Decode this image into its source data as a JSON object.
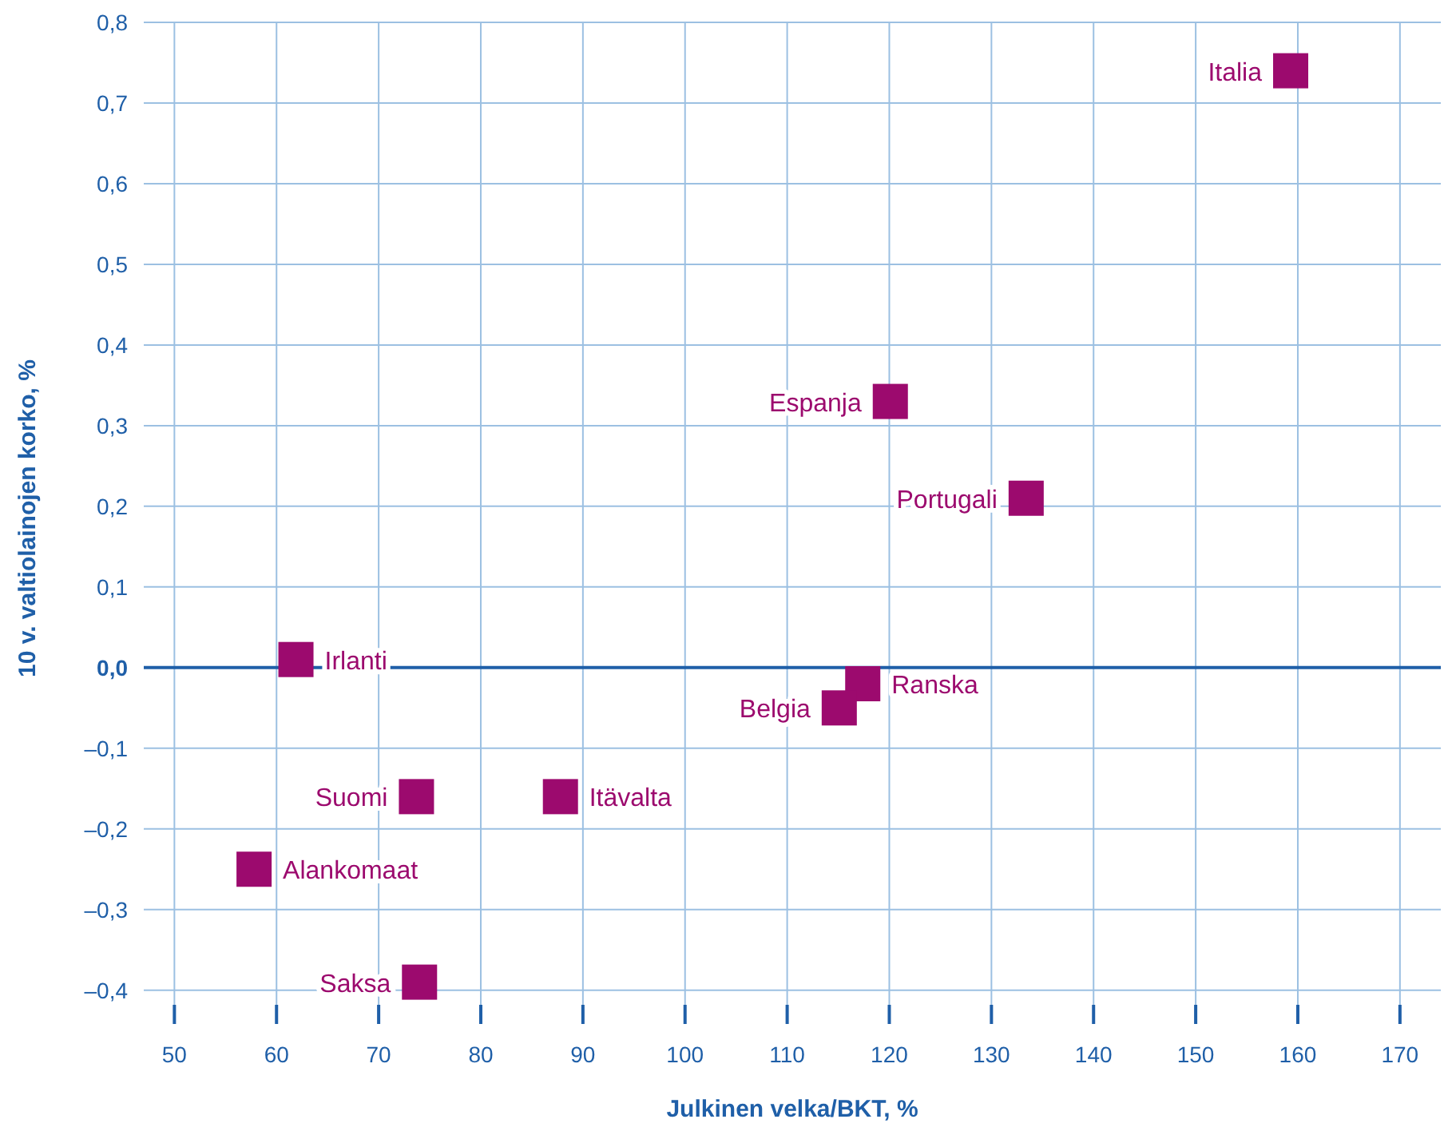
{
  "chart_data": {
    "type": "scatter",
    "xlabel": "Julkinen velka/BKT, %",
    "ylabel": "10 v. valtiolainojen korko, %",
    "x": [
      159.3,
      120.1,
      133.4,
      61.9,
      117.4,
      115.1,
      73.7,
      87.8,
      57.8,
      74
    ],
    "series": [
      {
        "color": "#9c0a6e",
        "values": [
          0.74,
          0.33,
          0.21,
          0.01,
          -0.02,
          -0.05,
          -0.16,
          -0.16,
          -0.25,
          -0.39
        ]
      }
    ],
    "marker": "square",
    "grid": true,
    "xlim": [
      47,
      174
    ],
    "ylim": [
      -0.43,
      0.8
    ],
    "xticks": [
      50,
      60,
      70,
      80,
      90,
      100,
      110,
      120,
      130,
      140,
      150,
      160,
      170
    ],
    "yticks": [
      {
        "value": -0.4,
        "label": "–0,4"
      },
      {
        "value": -0.3,
        "label": "–0,3"
      },
      {
        "value": -0.2,
        "label": "–0,2"
      },
      {
        "value": -0.1,
        "label": "–0,1"
      },
      {
        "value": 0,
        "label": "0,0"
      },
      {
        "value": 0.1,
        "label": "0,1"
      },
      {
        "value": 0.2,
        "label": "0,2"
      },
      {
        "value": 0.3,
        "label": "0,3"
      },
      {
        "value": 0.4,
        "label": "0,4"
      },
      {
        "value": 0.5,
        "label": "0,5"
      },
      {
        "value": 0.6,
        "label": "0,6"
      },
      {
        "value": 0.7,
        "label": "0,7"
      },
      {
        "value": 0.8,
        "label": "0,8"
      }
    ],
    "ref_lines": [
      {
        "axis": "y",
        "value": 0,
        "color": "#1f5fa8"
      }
    ],
    "annotations": [
      {
        "text": "Italia",
        "x": 159.3,
        "y": 0.74
      },
      {
        "text": "Espanja",
        "x": 120.1,
        "y": 0.33
      },
      {
        "text": "Portugali",
        "x": 133.4,
        "y": 0.21
      },
      {
        "text": "Irlanti",
        "x": 61.9,
        "y": 0.01
      },
      {
        "text": "Ranska",
        "x": 117.4,
        "y": -0.02
      },
      {
        "text": "Belgia",
        "x": 115.1,
        "y": -0.05
      },
      {
        "text": "Suomi",
        "x": 73.7,
        "y": -0.16
      },
      {
        "text": "Itävalta",
        "x": 87.8,
        "y": -0.16
      },
      {
        "text": "Alankomaat",
        "x": 57.8,
        "y": -0.25
      },
      {
        "text": "Saksa",
        "x": 74,
        "y": -0.39
      }
    ]
  }
}
